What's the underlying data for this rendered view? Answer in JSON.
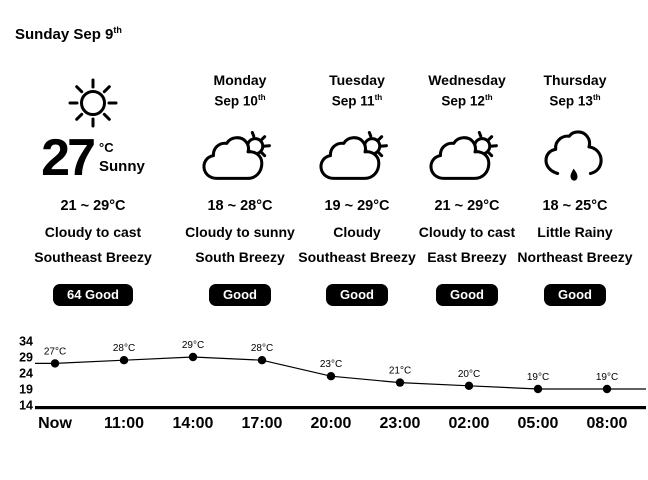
{
  "header": {
    "title": "Sunday Sep 9",
    "title_suffix": "th"
  },
  "current": {
    "temp": "27",
    "unit": "°C",
    "condition": "Sunny",
    "icon": "sun",
    "range": "21 ~ 29°C",
    "sky": "Cloudy to cast",
    "wind": "Southeast Breezy",
    "badge": "64 Good"
  },
  "forecast": [
    {
      "day": "Monday",
      "date": "Sep 10",
      "date_suffix": "th",
      "icon": "cloud-sun",
      "range": "18 ~ 28°C",
      "sky": "Cloudy to sunny",
      "wind": "South Breezy",
      "badge": "Good"
    },
    {
      "day": "Tuesday",
      "date": "Sep 11",
      "date_suffix": "th",
      "icon": "cloud-sun",
      "range": "19 ~ 29°C",
      "sky": "Cloudy",
      "wind": "Southeast Breezy",
      "badge": "Good"
    },
    {
      "day": "Wednesday",
      "date": "Sep 12",
      "date_suffix": "th",
      "icon": "cloud-sun",
      "range": "21 ~ 29°C",
      "sky": "Cloudy to cast",
      "wind": "East Breezy",
      "badge": "Good"
    },
    {
      "day": "Thursday",
      "date": "Sep 13",
      "date_suffix": "th",
      "icon": "rain-cloud",
      "range": "18 ~ 25°C",
      "sky": "Little Rainy",
      "wind": "Northeast Breezy",
      "badge": "Good"
    }
  ],
  "colors": {
    "foreground": "#000000",
    "background": "#ffffff",
    "badge_bg": "#000000",
    "badge_text": "#ffffff"
  },
  "chart_data": {
    "type": "line",
    "x": [
      "Now",
      "11:00",
      "14:00",
      "17:00",
      "20:00",
      "23:00",
      "02:00",
      "05:00",
      "08:00"
    ],
    "values": [
      27,
      28,
      29,
      28,
      23,
      21,
      20,
      19,
      19
    ],
    "point_labels": [
      "27°C",
      "28°C",
      "29°C",
      "28°C",
      "23°C",
      "21°C",
      "20°C",
      "19°C",
      "19°C"
    ],
    "yticks": [
      34,
      29,
      24,
      19,
      14
    ],
    "ylim": [
      14,
      34
    ],
    "title": "",
    "xlabel": "",
    "ylabel": "",
    "grid": false,
    "legend": false
  }
}
